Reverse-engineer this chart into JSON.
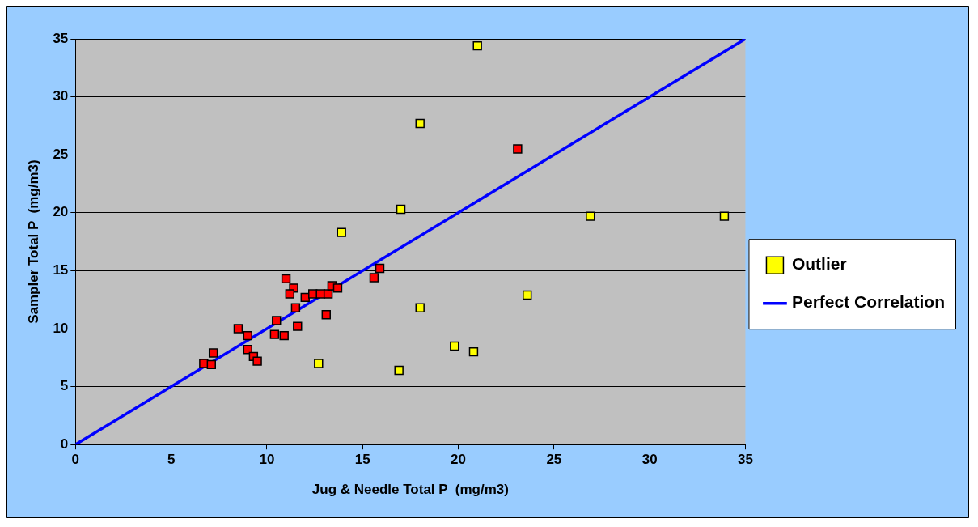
{
  "chart_data": {
    "type": "scatter",
    "xlabel": "Jug & Needle Total P  (mg/m3)",
    "ylabel": "Sampler Total P  (mg/m3)",
    "xlim": [
      0,
      35
    ],
    "ylim": [
      0,
      35
    ],
    "xticks": [
      0,
      5,
      10,
      15,
      20,
      25,
      30,
      35
    ],
    "yticks": [
      0,
      5,
      10,
      15,
      20,
      25,
      30,
      35
    ],
    "grid": "y",
    "legend": "right",
    "marker": "square",
    "series": [
      {
        "type": "scatter",
        "color": "#ff0000",
        "x": [
          6.7,
          7.2,
          7.1,
          8.5,
          9.0,
          9.0,
          9.3,
          9.5,
          10.5,
          10.4,
          10.9,
          11.0,
          11.4,
          11.2,
          11.5,
          11.6,
          12.0,
          12.4,
          12.8,
          13.2,
          13.1,
          13.4,
          13.7,
          15.6,
          15.9,
          23.1
        ],
        "values": [
          7.0,
          7.9,
          6.9,
          10.0,
          9.4,
          8.2,
          7.6,
          7.2,
          10.7,
          9.5,
          9.4,
          14.3,
          13.5,
          13.0,
          11.8,
          10.2,
          12.7,
          13.0,
          13.0,
          13.0,
          11.2,
          13.7,
          13.5,
          14.4,
          15.2,
          25.5
        ]
      },
      {
        "type": "scatter",
        "name": "Outlier",
        "color": "#ffff00",
        "x": [
          21.0,
          18.0,
          17.0,
          13.9,
          26.9,
          33.9,
          23.6,
          18.0,
          19.8,
          20.8,
          12.7,
          16.9
        ],
        "values": [
          34.4,
          27.7,
          20.3,
          18.3,
          19.7,
          19.7,
          12.9,
          11.8,
          8.5,
          8.0,
          7.0,
          6.4
        ]
      },
      {
        "type": "line",
        "name": "Perfect Correlation",
        "color": "#0000ff",
        "marker": "none",
        "x": [
          0,
          35
        ],
        "values": [
          0,
          35
        ]
      }
    ]
  }
}
